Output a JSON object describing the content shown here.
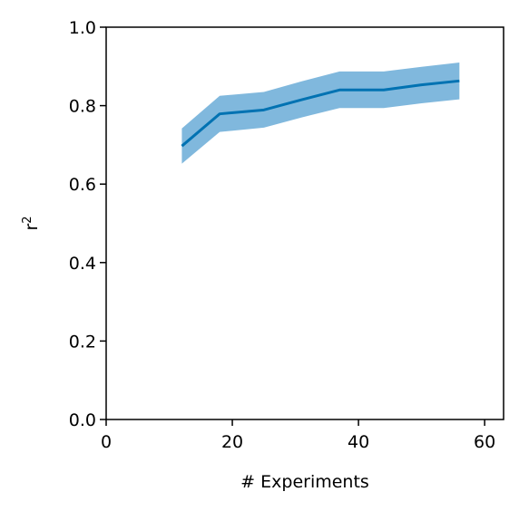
{
  "chart_data": {
    "type": "line",
    "title": "",
    "xlabel": "# Experiments",
    "ylabel": "r",
    "ylabel_superscript": "2",
    "xlim": [
      0,
      63
    ],
    "ylim": [
      0.0,
      1.0
    ],
    "x_ticks": [
      0,
      20,
      40,
      60
    ],
    "y_ticks": [
      0.0,
      0.2,
      0.4,
      0.6,
      0.8,
      1.0
    ],
    "x_tick_labels": [
      "0",
      "20",
      "40",
      "60"
    ],
    "y_tick_labels": [
      "0.0",
      "0.2",
      "0.4",
      "0.6",
      "0.8",
      "1.0"
    ],
    "grid": false,
    "legend": false,
    "series": [
      {
        "x": [
          12,
          18,
          25,
          31,
          37,
          44,
          50,
          56
        ],
        "values": [
          0.697,
          0.779,
          0.789,
          0.815,
          0.84,
          0.84,
          0.853,
          0.863
        ],
        "lower": [
          0.652,
          0.733,
          0.744,
          0.77,
          0.794,
          0.794,
          0.806,
          0.816
        ],
        "upper": [
          0.742,
          0.825,
          0.835,
          0.862,
          0.887,
          0.887,
          0.899,
          0.91
        ],
        "line_color": "#0072b2",
        "band_color": "#56a0d2"
      }
    ]
  }
}
